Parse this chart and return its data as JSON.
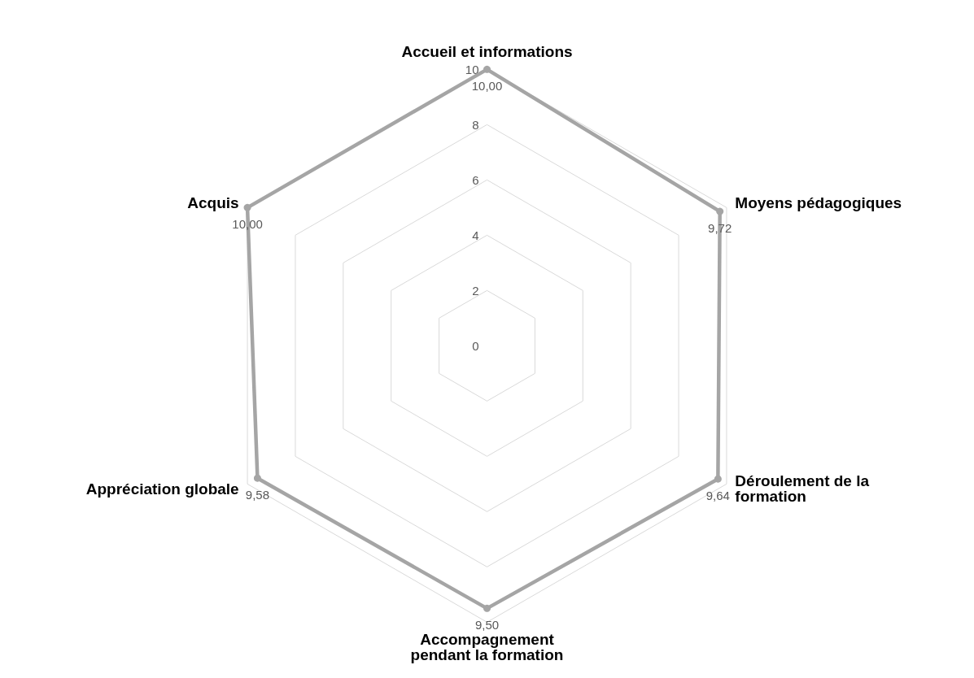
{
  "chart_data": {
    "type": "radar",
    "categories": [
      "Accueil et informations",
      "Moyens pédagogiques",
      "Déroulement de la\nformation",
      "Accompagnement\npendant la formation",
      "Appréciation globale",
      "Acquis"
    ],
    "series": [
      {
        "color": "#a5a5a5",
        "values": [
          10,
          9.72,
          9.64,
          9.5,
          9.58,
          10
        ],
        "value_labels": [
          "10,00",
          "9,72",
          "9,64",
          "9,50",
          "9,58",
          "10,00"
        ]
      }
    ],
    "ylim": [
      0,
      10
    ],
    "yticks": [
      0,
      2,
      4,
      6,
      8,
      10
    ],
    "grid": true,
    "marker": "circle",
    "line_style": "solid"
  }
}
